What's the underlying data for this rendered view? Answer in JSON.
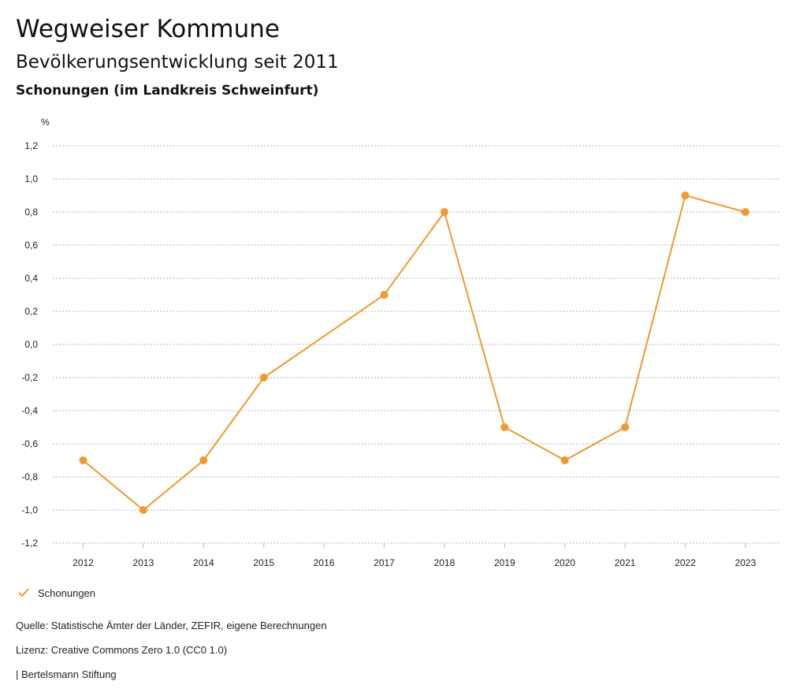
{
  "header": {
    "title": "Wegweiser Kommune",
    "subtitle": "Bevölkerungsentwicklung seit 2011",
    "region": "Schonungen (im Landkreis Schweinfurt)"
  },
  "footer": {
    "source": "Quelle: Statistische Ämter der Länder, ZEFIR, eigene Berechnungen",
    "license": "Lizenz: Creative Commons Zero 1.0 (CC0 1.0)",
    "publisher": "| Bertelsmann Stiftung"
  },
  "legend": {
    "icon": "check-icon"
  },
  "colors": {
    "series": "#f0992e",
    "grid": "#b9b9b9",
    "text": "#222222"
  },
  "chart_data": {
    "type": "line",
    "title": "",
    "xlabel": "",
    "ylabel": "%",
    "x": [
      "2012",
      "2013",
      "2014",
      "2015",
      "2016",
      "2017",
      "2018",
      "2019",
      "2020",
      "2021",
      "2022",
      "2023"
    ],
    "ylim": [
      -1.2,
      1.2
    ],
    "yticks": [
      1.2,
      1.0,
      0.8,
      0.6,
      0.4,
      0.2,
      0.0,
      -0.2,
      -0.4,
      -0.6,
      -0.8,
      -1.0,
      -1.2
    ],
    "ytick_labels": [
      "1,2",
      "1,0",
      "0,8",
      "0,6",
      "0,4",
      "0,2",
      "0,0",
      "-0,2",
      "-0,4",
      "-0,6",
      "-0,8",
      "-1,0",
      "-1,2"
    ],
    "grid": true,
    "legend_position": "bottom-left",
    "series": [
      {
        "name": "Schonungen",
        "color": "#f0992e",
        "values": [
          -0.7,
          -1.0,
          -0.7,
          -0.2,
          null,
          0.3,
          0.8,
          -0.5,
          -0.7,
          -0.5,
          0.9,
          0.8
        ]
      }
    ]
  }
}
